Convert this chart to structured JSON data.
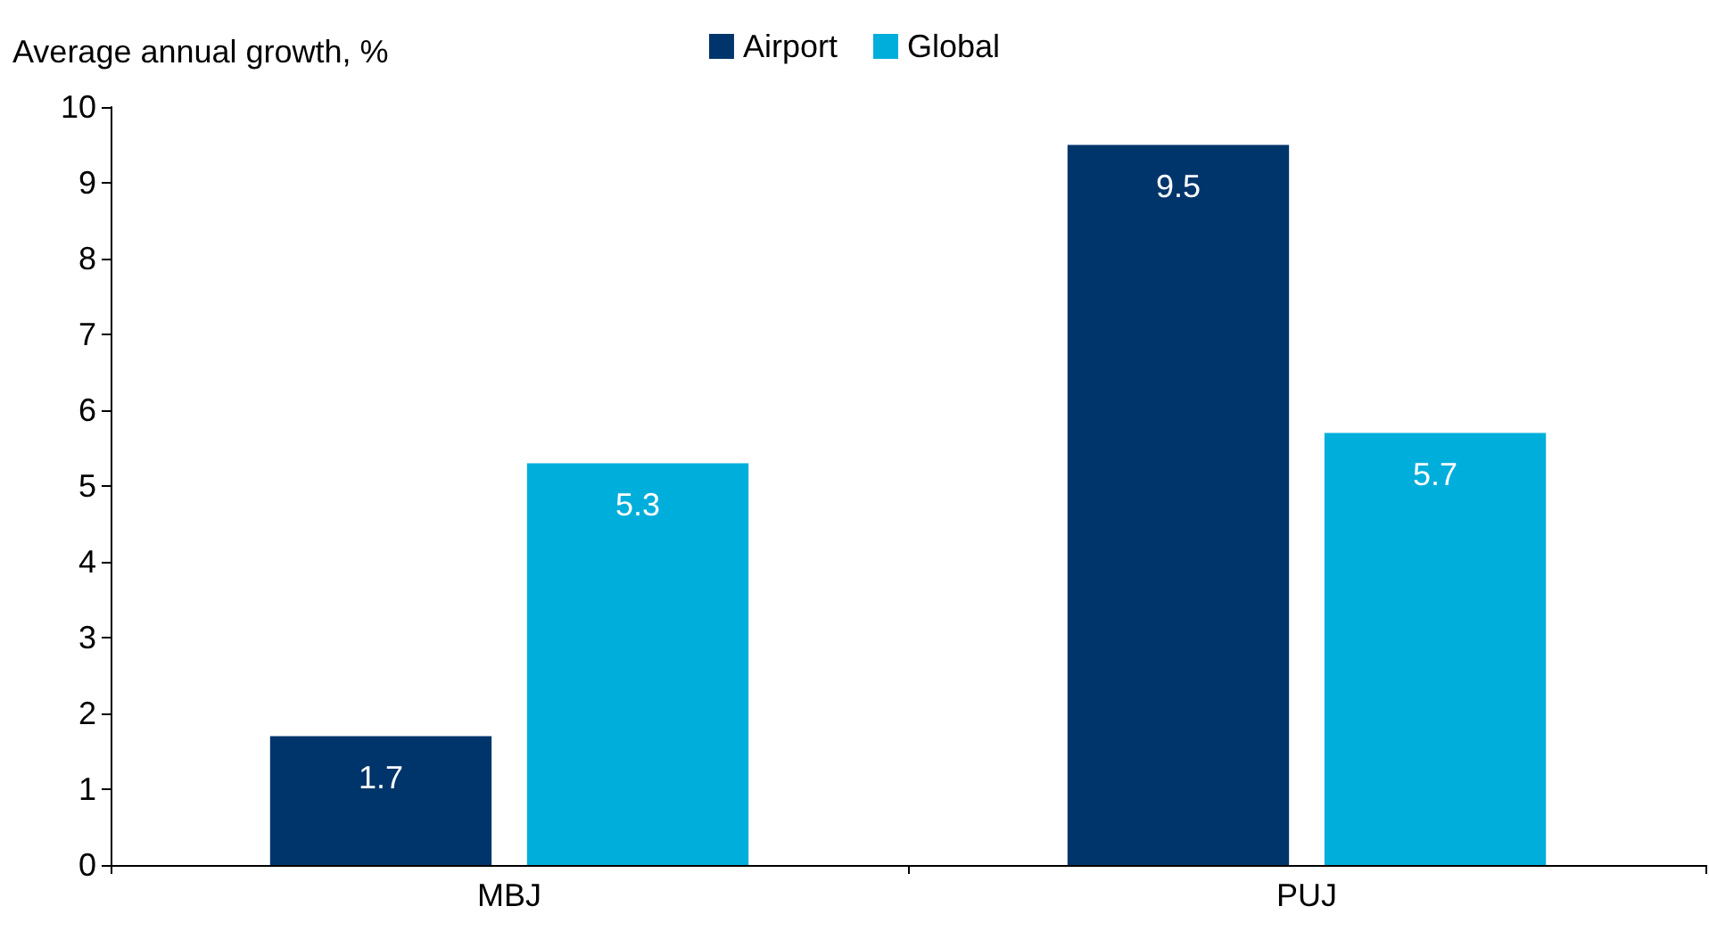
{
  "chart_data": {
    "type": "bar",
    "ylabel": "Average annual growth, %",
    "categories": [
      "MBJ",
      "PUJ"
    ],
    "series": [
      {
        "name": "Airport",
        "color": "#00356b",
        "values": [
          1.7,
          9.5
        ]
      },
      {
        "name": "Global",
        "color": "#00aedb",
        "values": [
          5.3,
          5.7
        ]
      }
    ],
    "ylim": [
      0,
      10
    ],
    "yticks": [
      0,
      1,
      2,
      3,
      4,
      5,
      6,
      7,
      8,
      9,
      10
    ],
    "grid": false,
    "legend": "top",
    "data_labels": true
  }
}
